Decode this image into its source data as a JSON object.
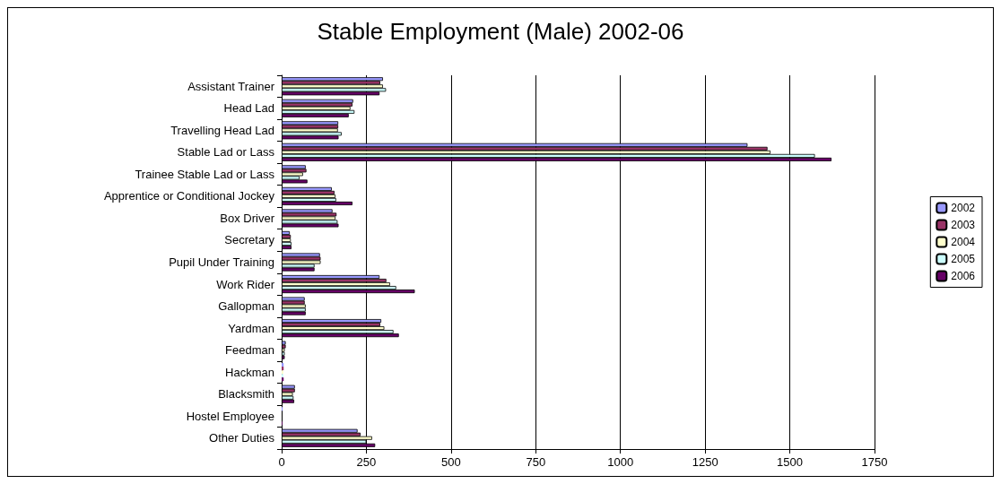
{
  "chart_data": {
    "type": "bar",
    "orientation": "horizontal",
    "title": "Stable Employment (Male) 2002-06",
    "categories": [
      "Assistant Trainer",
      "Head Lad",
      "Travelling Head Lad",
      "Stable Lad or Lass",
      "Trainee Stable Lad or Lass",
      "Apprentice or Conditional Jockey",
      "Box Driver",
      "Secretary",
      "Pupil Under Training",
      "Work Rider",
      "Gallopman",
      "Yardman",
      "Feedman",
      "Hackman",
      "Blacksmith",
      "Hostel Employee",
      "Other Duties"
    ],
    "series": [
      {
        "name": "2002",
        "color": "#9999ff",
        "values": [
          299,
          211,
          167,
          1375,
          71,
          148,
          150,
          24,
          113,
          289,
          68,
          294,
          12,
          6,
          39,
          3,
          224
        ]
      },
      {
        "name": "2003",
        "color": "#993366",
        "values": [
          291,
          209,
          167,
          1434,
          73,
          156,
          162,
          27,
          115,
          309,
          68,
          291,
          12,
          6,
          39,
          null,
          233
        ]
      },
      {
        "name": "2004",
        "color": "#ffffcc",
        "values": [
          299,
          203,
          166,
          1443,
          63,
          159,
          159,
          27,
          115,
          320,
          71,
          303,
          9,
          5,
          33,
          null,
          267
        ]
      },
      {
        "name": "2005",
        "color": "#ccffff",
        "values": [
          308,
          215,
          177,
          1574,
          53,
          161,
          165,
          29,
          97,
          338,
          71,
          330,
          9,
          5,
          35,
          null,
          250
        ]
      },
      {
        "name": "2006",
        "color": "#660066",
        "values": [
          289,
          198,
          168,
          1623,
          76,
          209,
          168,
          29,
          97,
          393,
          71,
          346,
          9,
          6,
          37,
          2,
          276
        ]
      }
    ],
    "xlim": [
      0,
      1750
    ],
    "xticks": [
      0,
      250,
      500,
      750,
      1000,
      1250,
      1500,
      1750
    ],
    "grid": "x",
    "legend": "right"
  }
}
